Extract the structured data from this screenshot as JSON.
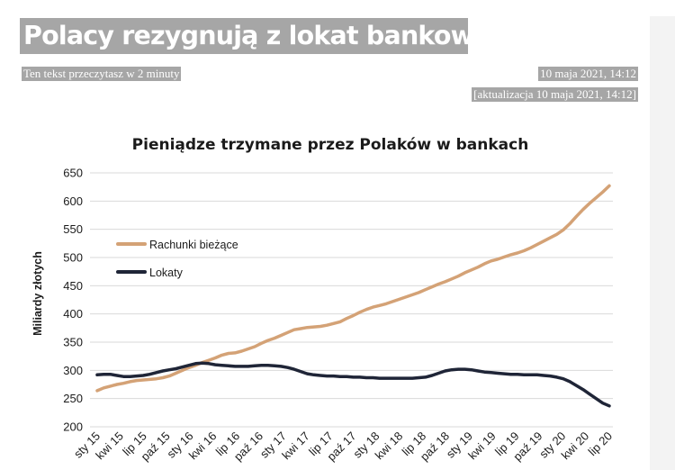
{
  "article": {
    "headline": "Polacy rezygnują z lokat bankowych",
    "read_time": "Ten tekst przeczytasz w 2 minuty",
    "date": "10 maja 2021, 14:12",
    "updated": "[aktualizacja 10 maja 2021, 14:12]"
  },
  "chart_data": {
    "type": "line",
    "title": "Pieniądze trzymane przez Polaków w bankach",
    "xlabel": "",
    "ylabel": "Miliardy złotych",
    "ylim": [
      200,
      650
    ],
    "yticks": [
      200,
      250,
      300,
      350,
      400,
      450,
      500,
      550,
      600,
      650
    ],
    "grid": true,
    "legend_position": "left, inside plot",
    "x_ticks": [
      "sty 15",
      "kwi 15",
      "lip 15",
      "paź 15",
      "sty 16",
      "kwi 16",
      "lip 16",
      "paź 16",
      "sty 17",
      "kwi 17",
      "lip 17",
      "paź 17",
      "sty 18",
      "kwi 18",
      "lip 18",
      "paź 18",
      "sty 19",
      "kwi 19",
      "lip 19",
      "paź 19",
      "sty 20",
      "kwi 20",
      "lip 20"
    ],
    "series": [
      {
        "name": "Rachunki bieżące",
        "color": "#d4a276",
        "values": [
          264,
          269,
          272,
          275,
          277,
          280,
          282,
          283,
          284,
          285,
          287,
          290,
          295,
          300,
          305,
          309,
          314,
          318,
          322,
          327,
          330,
          331,
          334,
          338,
          342,
          348,
          353,
          357,
          362,
          367,
          372,
          374,
          376,
          377,
          378,
          380,
          383,
          386,
          392,
          397,
          403,
          408,
          412,
          415,
          418,
          422,
          426,
          430,
          434,
          438,
          443,
          448,
          453,
          457,
          462,
          467,
          473,
          478,
          483,
          489,
          494,
          497,
          501,
          505,
          508,
          512,
          517,
          523,
          529,
          535,
          541,
          549,
          560,
          573,
          585,
          596,
          606,
          616,
          627
        ]
      },
      {
        "name": "Lokaty",
        "color": "#1f2537",
        "values": [
          292,
          293,
          293,
          291,
          289,
          289,
          290,
          291,
          293,
          296,
          299,
          301,
          303,
          306,
          309,
          312,
          313,
          312,
          310,
          309,
          308,
          307,
          307,
          307,
          308,
          309,
          309,
          308,
          307,
          305,
          302,
          298,
          294,
          292,
          291,
          290,
          290,
          289,
          289,
          288,
          288,
          287,
          287,
          286,
          286,
          286,
          286,
          286,
          286,
          287,
          288,
          291,
          295,
          299,
          301,
          302,
          302,
          301,
          299,
          297,
          296,
          295,
          294,
          293,
          293,
          292,
          292,
          292,
          291,
          290,
          288,
          285,
          280,
          273,
          266,
          258,
          250,
          242,
          237
        ]
      }
    ]
  }
}
